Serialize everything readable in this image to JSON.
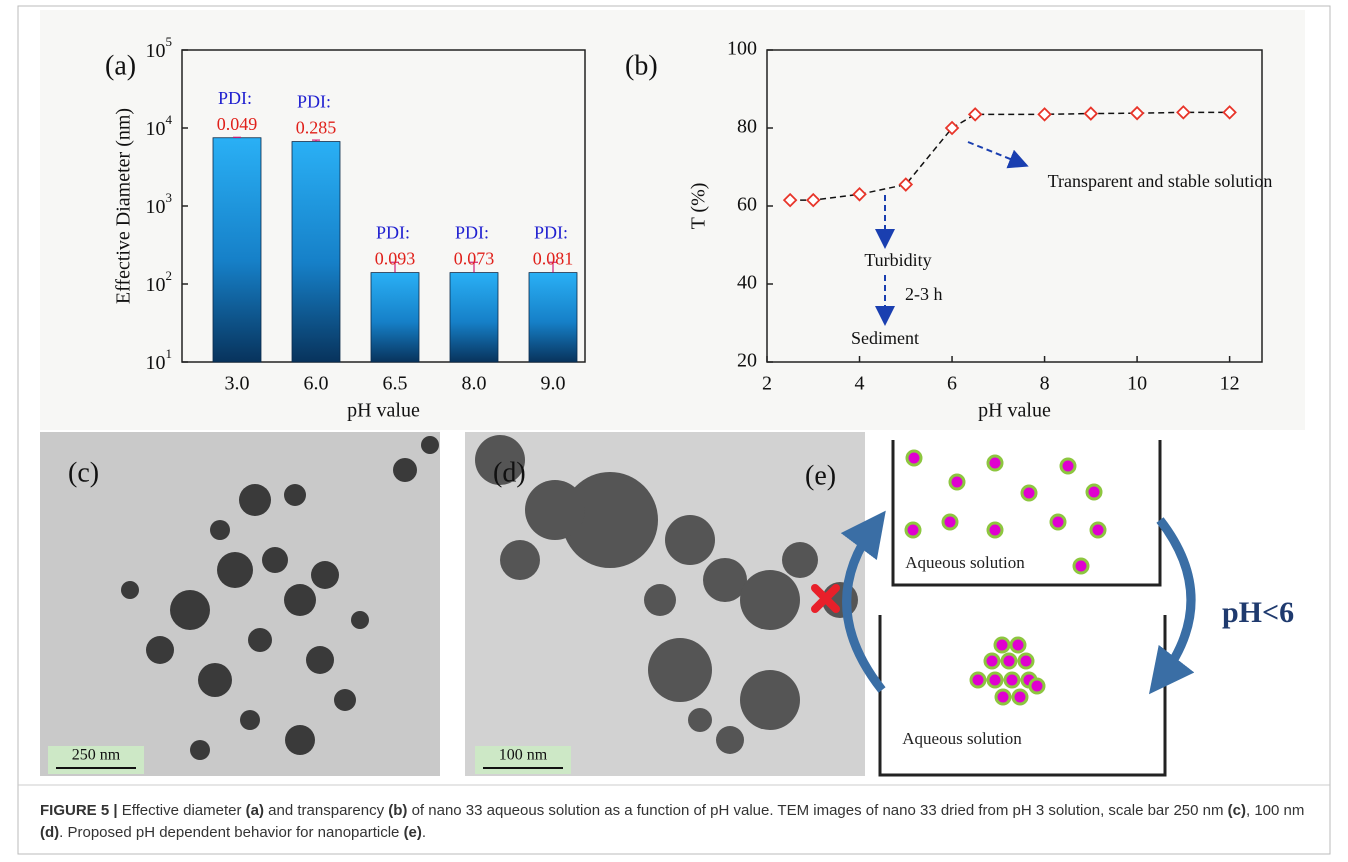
{
  "chart_data": [
    {
      "type": "bar",
      "panel_label": "(a)",
      "y_label": "Effective Diameter (nm)",
      "x_label": "pH value",
      "categories": [
        "3.0",
        "6.0",
        "6.5",
        "8.0",
        "9.0"
      ],
      "values": [
        7500,
        6700,
        140,
        140,
        140
      ],
      "errors": [
        100,
        300,
        50,
        50,
        50
      ],
      "color": "#1ea0e8",
      "log_scale": true,
      "ylim": [
        10,
        100000
      ],
      "yticks": [
        {
          "value": 10,
          "label": "10",
          "sup": "1"
        },
        {
          "value": 100,
          "label": "10",
          "sup": "2"
        },
        {
          "value": 1000,
          "label": "10",
          "sup": "3"
        },
        {
          "value": 10000,
          "label": "10",
          "sup": "4"
        },
        {
          "value": 100000,
          "label": "10",
          "sup": "5"
        }
      ],
      "annotations": [
        {
          "label": "PDI:",
          "value": "0.049"
        },
        {
          "label": "PDI:",
          "value": "0.285"
        },
        {
          "label": "PDI:",
          "value": "0.093"
        },
        {
          "label": "PDI:",
          "value": "0.073"
        },
        {
          "label": "PDI:",
          "value": "0.081"
        }
      ]
    },
    {
      "type": "line",
      "panel_label": "(b)",
      "y_label": "T (%)",
      "x_label": "pH value",
      "x": [
        2.5,
        3,
        4,
        5,
        6,
        6.5,
        8,
        9,
        10,
        11,
        12
      ],
      "values": [
        61.5,
        61.5,
        63,
        65.5,
        80,
        83.5,
        83.5,
        83.7,
        83.8,
        84,
        84
      ],
      "color": "#e8352a",
      "xlim": [
        2,
        12.7
      ],
      "ylim": [
        20,
        100
      ],
      "xticks": [
        2,
        4,
        6,
        8,
        10,
        12
      ],
      "yticks": [
        20,
        40,
        60,
        80,
        100
      ],
      "annotations": [
        "Transparent and stable solution",
        "Turbidity",
        "2-3 h",
        "Sediment"
      ]
    }
  ],
  "panels": {
    "c": {
      "label": "(c)",
      "scale_bar": "250 nm"
    },
    "d": {
      "label": "(d)",
      "scale_bar": "100 nm"
    },
    "e": {
      "label": "(e)",
      "top_beaker": "Aqueous solution",
      "bottom_beaker": "Aqueous solution",
      "condition": "pH<6"
    }
  },
  "caption": [
    {
      "text": "FIGURE 5 |",
      "bold": true
    },
    {
      "text": " Effective diameter ",
      "bold": false
    },
    {
      "text": "(a)",
      "bold": true
    },
    {
      "text": " and transparency ",
      "bold": false
    },
    {
      "text": "(b)",
      "bold": true
    },
    {
      "text": " of nano 33 aqueous solution as a function of pH value. TEM images of nano 33 dried from pH 3 solution, scale bar 250 nm ",
      "bold": false
    },
    {
      "text": "(c)",
      "bold": true
    },
    {
      "text": ", 100 nm ",
      "bold": false
    },
    {
      "text": "(d)",
      "bold": true
    },
    {
      "text": ". Proposed pH dependent behavior for nanoparticle ",
      "bold": false
    },
    {
      "text": "(e)",
      "bold": true
    },
    {
      "text": ".",
      "bold": false
    }
  ]
}
